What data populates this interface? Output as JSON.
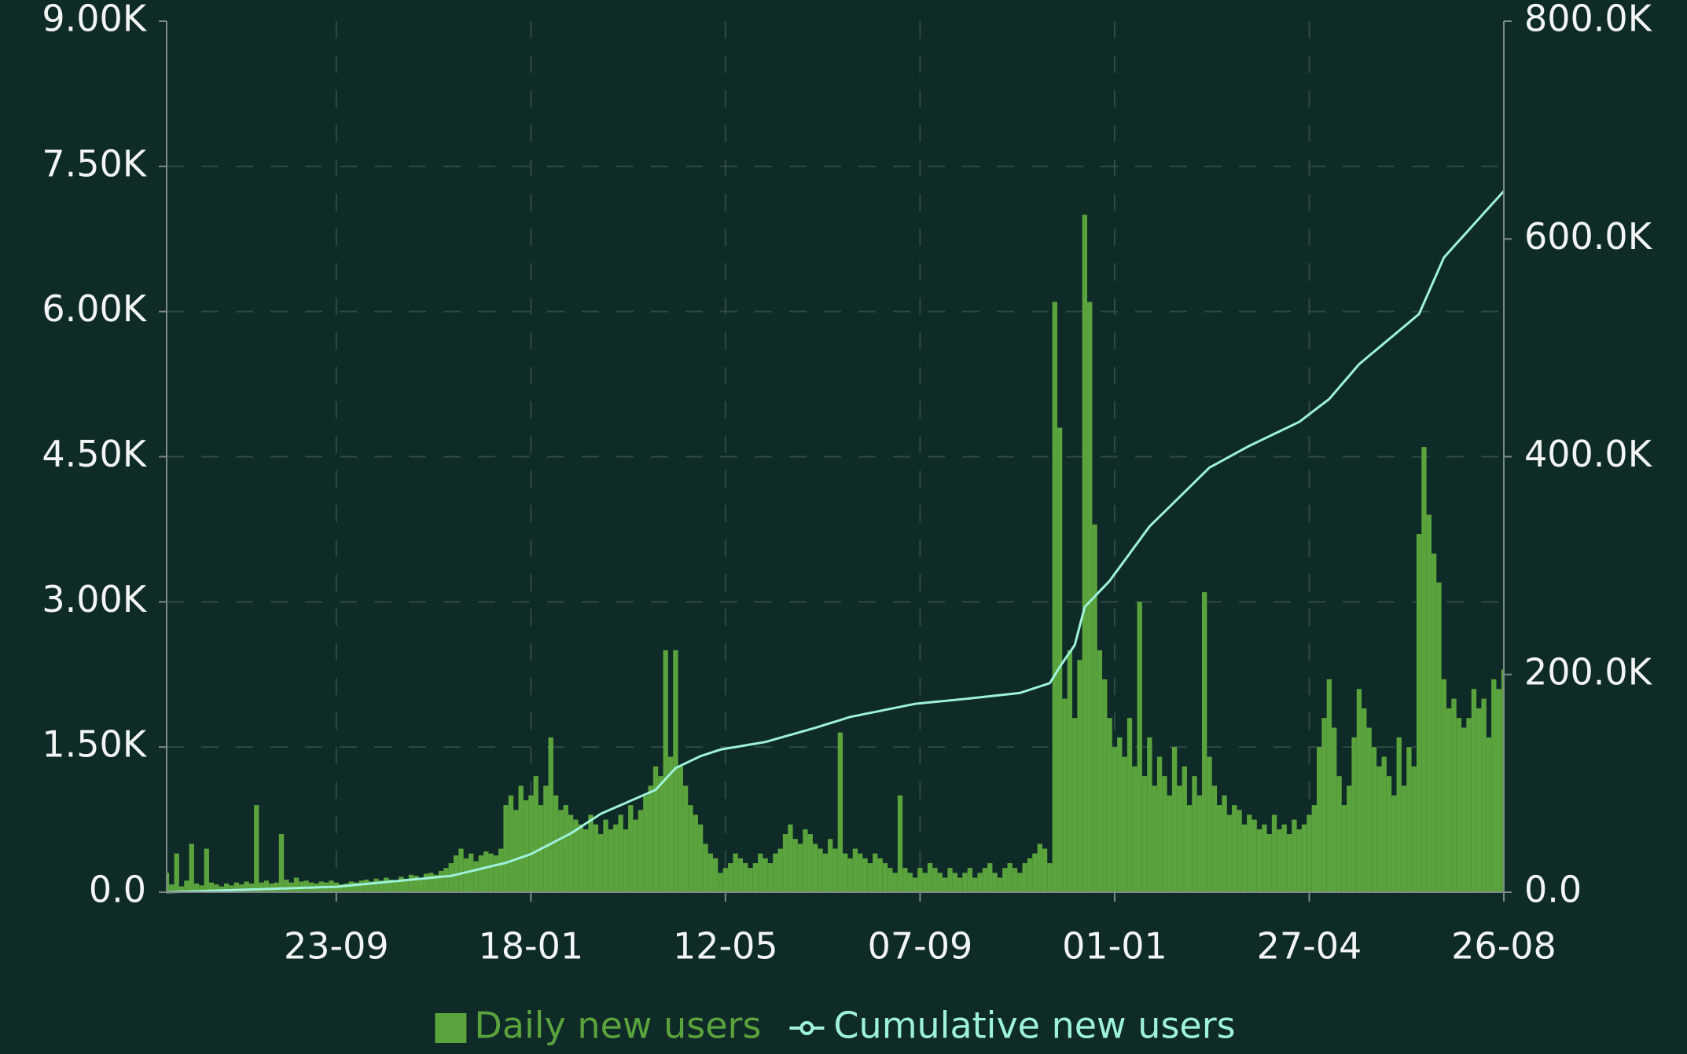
{
  "chart_data": {
    "type": "bar",
    "categories": [
      null,
      null,
      null,
      null,
      null,
      null,
      null,
      null,
      null,
      null,
      null,
      null,
      null,
      null,
      null,
      null,
      null,
      null,
      null,
      null,
      null,
      null,
      null,
      null,
      null,
      null,
      null,
      null,
      null,
      null,
      null,
      null,
      null,
      null,
      "23-09",
      null,
      null,
      null,
      null,
      null,
      null,
      null,
      null,
      null,
      null,
      null,
      null,
      null,
      null,
      null,
      null,
      null,
      null,
      null,
      null,
      null,
      null,
      null,
      null,
      null,
      null,
      null,
      null,
      null,
      null,
      null,
      null,
      null,
      null,
      null,
      null,
      null,
      null,
      "18-01",
      null,
      null,
      null,
      null,
      null,
      null,
      null,
      null,
      null,
      null,
      null,
      null,
      null,
      null,
      null,
      null,
      null,
      null,
      null,
      null,
      null,
      null,
      null,
      null,
      null,
      null,
      null,
      null,
      null,
      null,
      null,
      null,
      null,
      null,
      null,
      null,
      null,
      null,
      "12-05",
      null,
      null,
      null,
      null,
      null,
      null,
      null,
      null,
      null,
      null,
      null,
      null,
      null,
      null,
      null,
      null,
      null,
      null,
      null,
      null,
      null,
      null,
      null,
      null,
      null,
      null,
      null,
      null,
      null,
      null,
      null,
      null,
      null,
      null,
      null,
      null,
      null,
      null,
      "07-09",
      null,
      null,
      null,
      null,
      null,
      null,
      null,
      null,
      null,
      null,
      null,
      null,
      null,
      null,
      null,
      null,
      null,
      null,
      null,
      null,
      null,
      null,
      null,
      null,
      null,
      null,
      null,
      null,
      null,
      null,
      null,
      null,
      null,
      null,
      null,
      null,
      null,
      null,
      "01-01",
      null,
      null,
      null,
      null,
      null,
      null,
      null,
      null,
      null,
      null,
      null,
      null,
      null,
      null,
      null,
      null,
      null,
      null,
      null,
      null,
      null,
      null,
      null,
      null,
      null,
      null,
      null,
      null,
      null,
      null,
      null,
      null,
      null,
      null,
      null,
      null,
      null,
      null,
      "27-04",
      null,
      null,
      null,
      null,
      null,
      null,
      null,
      null,
      null,
      null,
      null,
      null,
      null,
      null,
      null,
      null,
      null,
      null,
      null,
      null,
      null,
      null,
      null,
      null,
      null,
      null,
      null,
      null,
      null,
      null,
      null,
      null,
      null,
      null,
      null,
      null,
      null,
      null,
      "26-08"
    ],
    "series": [
      {
        "name": "Daily new users",
        "type": "bar",
        "color": "#5ba33d",
        "values": [
          200,
          80,
          400,
          60,
          120,
          500,
          90,
          70,
          450,
          100,
          80,
          60,
          90,
          70,
          100,
          80,
          110,
          90,
          900,
          100,
          120,
          90,
          100,
          600,
          130,
          100,
          150,
          110,
          120,
          100,
          90,
          110,
          100,
          120,
          100,
          80,
          90,
          110,
          100,
          120,
          130,
          110,
          140,
          120,
          150,
          130,
          120,
          160,
          140,
          180,
          170,
          150,
          190,
          200,
          180,
          220,
          250,
          300,
          380,
          450,
          350,
          400,
          320,
          380,
          420,
          400,
          380,
          450,
          900,
          1000,
          850,
          1100,
          950,
          1000,
          1200,
          900,
          1100,
          1600,
          1000,
          850,
          900,
          800,
          750,
          700,
          650,
          800,
          700,
          600,
          750,
          650,
          700,
          800,
          650,
          900,
          750,
          850,
          1000,
          1100,
          1300,
          1200,
          2500,
          1400,
          2500,
          1300,
          1100,
          900,
          800,
          700,
          500,
          400,
          350,
          200,
          250,
          300,
          400,
          350,
          300,
          250,
          300,
          400,
          350,
          300,
          400,
          450,
          600,
          700,
          550,
          500,
          650,
          600,
          500,
          450,
          400,
          550,
          450,
          1650,
          400,
          350,
          450,
          400,
          350,
          300,
          400,
          350,
          300,
          250,
          200,
          1000,
          250,
          200,
          150,
          250,
          200,
          300,
          250,
          200,
          150,
          250,
          200,
          150,
          200,
          250,
          150,
          200,
          250,
          300,
          200,
          150,
          250,
          300,
          250,
          200,
          300,
          350,
          400,
          500,
          450,
          300,
          6100,
          4800,
          2000,
          2500,
          1800,
          2400,
          7000,
          6100,
          3800,
          2500,
          2200,
          1800,
          1500,
          1600,
          1400,
          1800,
          1300,
          3000,
          1200,
          1600,
          1100,
          1400,
          1200,
          1000,
          1500,
          1100,
          1300,
          900,
          1200,
          1000,
          3100,
          1400,
          1100,
          900,
          1000,
          800,
          900,
          850,
          700,
          800,
          750,
          650,
          700,
          600,
          800,
          650,
          700,
          600,
          750,
          650,
          700,
          800,
          900,
          1500,
          1800,
          2200,
          1700,
          1200,
          900,
          1100,
          1600,
          2100,
          1900,
          1700,
          1500,
          1300,
          1400,
          1200,
          1000,
          1600,
          1100,
          1500,
          1300,
          3700,
          4600,
          3900,
          3500,
          3200,
          2200,
          1900,
          2000,
          1800,
          1700,
          1800,
          2100,
          1900,
          2000,
          1600,
          2200,
          2100,
          2300
        ]
      },
      {
        "name": "Cumulative new users",
        "type": "line",
        "axis": "y2",
        "color": "#9ff2da",
        "values": [
          0,
          150,
          300,
          440,
          590,
          740,
          880,
          1030,
          1180,
          1320,
          1470,
          1620,
          1760,
          1910,
          2060,
          2210,
          2350,
          2500,
          2650,
          2790,
          2940,
          3090,
          3240,
          3380,
          3530,
          3680,
          3820,
          3970,
          4120,
          4260,
          4410,
          4560,
          4710,
          4850,
          5000,
          5430,
          5870,
          6300,
          6740,
          7170,
          7610,
          8040,
          8480,
          8910,
          9350,
          9780,
          10220,
          10650,
          11090,
          11520,
          11960,
          12390,
          12830,
          13260,
          13700,
          14130,
          14570,
          15000,
          16090,
          17180,
          18270,
          19360,
          20450,
          21550,
          22640,
          23730,
          24820,
          25910,
          27000,
          28600,
          30200,
          31800,
          33400,
          35000,
          37400,
          39800,
          42100,
          44500,
          46900,
          49300,
          51600,
          54000,
          57000,
          60000,
          63000,
          66000,
          69000,
          72000,
          74000,
          76000,
          78000,
          80000,
          82000,
          84000,
          86000,
          88000,
          90000,
          92000,
          94000,
          99000,
          104000,
          109000,
          114000,
          116200,
          118400,
          120600,
          122800,
          125000,
          126500,
          128000,
          129500,
          131000,
          131800,
          132600,
          133300,
          134100,
          134900,
          135700,
          136400,
          137200,
          138000,
          139300,
          140600,
          141900,
          143200,
          144500,
          145800,
          147100,
          148400,
          149700,
          151000,
          152400,
          153900,
          155300,
          156700,
          158100,
          159600,
          161000,
          161900,
          162800,
          163800,
          164700,
          165600,
          166500,
          167500,
          168400,
          169300,
          170200,
          171200,
          172100,
          173000,
          173500,
          173900,
          174400,
          174800,
          175300,
          175700,
          176200,
          176600,
          177100,
          177500,
          178000,
          178500,
          179000,
          179500,
          180000,
          180500,
          181000,
          181500,
          182000,
          182500,
          183000,
          184500,
          186000,
          187500,
          189000,
          190500,
          192000,
          199500,
          207000,
          213700,
          220300,
          227000,
          244500,
          262000,
          266800,
          271600,
          276400,
          281200,
          286000,
          292300,
          298500,
          304800,
          311000,
          317300,
          323500,
          329800,
          336000,
          340500,
          345000,
          349500,
          354000,
          358500,
          363000,
          367500,
          372000,
          376500,
          381000,
          385500,
          390000,
          392500,
          395000,
          397500,
          400000,
          402500,
          405000,
          407500,
          410000,
          412200,
          414400,
          416600,
          418800,
          421000,
          423200,
          425400,
          427600,
          429800,
          432000,
          435500,
          439000,
          442500,
          446000,
          449500,
          453000,
          458300,
          463700,
          469000,
          474300,
          479700,
          485000,
          488800,
          492700,
          496500,
          500300,
          504200,
          508000,
          511800,
          515700,
          519500,
          523300,
          527200,
          531000,
          541400,
          551800,
          562200,
          572600,
          583000,
          588100,
          593200,
          598300,
          603300,
          608400,
          613500,
          618600,
          623700,
          628800,
          633800,
          638900,
          644000
        ]
      }
    ],
    "ylim": [
      0,
      9000
    ],
    "yticks": [
      {
        "value": 0,
        "label": "0.0"
      },
      {
        "value": 1500,
        "label": "1.50K"
      },
      {
        "value": 3000,
        "label": "3.00K"
      },
      {
        "value": 4500,
        "label": "4.50K"
      },
      {
        "value": 6000,
        "label": "6.00K"
      },
      {
        "value": 7500,
        "label": "7.50K"
      },
      {
        "value": 9000,
        "label": "9.00K"
      }
    ],
    "y2lim": [
      0,
      800000
    ],
    "y2ticks": [
      {
        "value": 0,
        "label": "0.0"
      },
      {
        "value": 200000,
        "label": "200.0K"
      },
      {
        "value": 400000,
        "label": "400.0K"
      },
      {
        "value": 600000,
        "label": "600.0K"
      },
      {
        "value": 800000,
        "label": "800.0K"
      }
    ],
    "grid": true
  }
}
